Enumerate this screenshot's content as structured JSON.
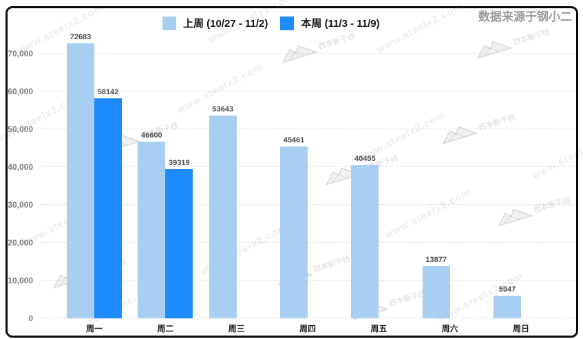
{
  "source_label": "数据来源于钢小二",
  "watermark": {
    "site_text": "www.steelx2.com",
    "logo_text": "西本新干线"
  },
  "legend": [
    {
      "label": "上周 (10/27 - 11/2)",
      "color": "#A8CFF2"
    },
    {
      "label": "本周 (11/3 - 11/9)",
      "color": "#1E8BFA"
    }
  ],
  "chart_data": {
    "type": "bar",
    "title": "",
    "xlabel": "",
    "ylabel": "",
    "categories": [
      "周一",
      "周二",
      "周三",
      "周四",
      "周五",
      "周六",
      "周日"
    ],
    "series": [
      {
        "name": "上周 (10/27 - 11/2)",
        "color": "#A8CFF2",
        "values": [
          72683,
          46600,
          53643,
          45461,
          40455,
          13877,
          5947
        ]
      },
      {
        "name": "本周 (11/3 - 11/9)",
        "color": "#1E8BFA",
        "values": [
          58142,
          39319,
          null,
          null,
          null,
          null,
          null
        ]
      }
    ],
    "ylim": [
      0,
      75000
    ],
    "yticks": [
      0,
      10000,
      20000,
      30000,
      40000,
      50000,
      60000,
      70000
    ],
    "ytick_labels": [
      "0",
      "10,000",
      "20,000",
      "30,000",
      "40,000",
      "50,000",
      "60,000",
      "70,000"
    ],
    "grid": "horizontal-dotted",
    "legend_position": "top-center",
    "bar_value_labels": true
  }
}
